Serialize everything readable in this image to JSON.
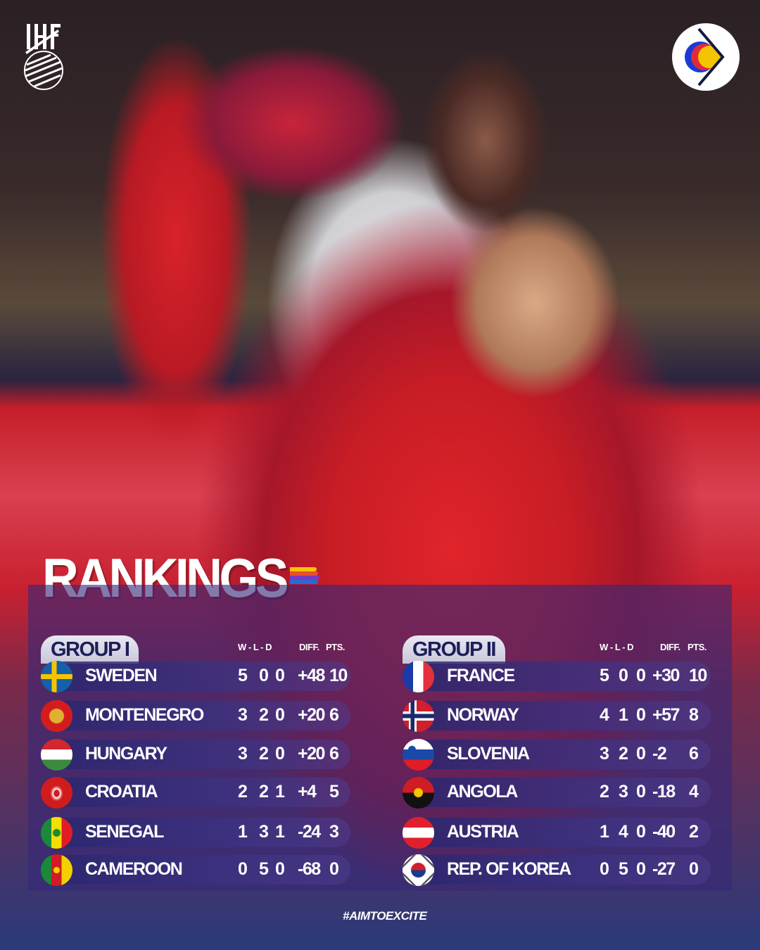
{
  "branding": {
    "left_logo": "IHF",
    "right_logo": "ehf-euro-icon",
    "hashtag": "#AIMTOEXCITE"
  },
  "title": "RANKINGS",
  "colors": {
    "title_stripes": [
      "#f5c400",
      "#e8502a",
      "#7a3ac0",
      "#2a6ad8"
    ],
    "panel": "#37287a",
    "group_tab_text": "#1b1f5a"
  },
  "columns": {
    "wld": "W - L - D",
    "diff": "DIFF.",
    "pts": "PTS."
  },
  "groups": [
    {
      "label": "GROUP I",
      "teams": [
        {
          "name": "SWEDEN",
          "flag": "se",
          "w": "5",
          "l": "0",
          "d": "0",
          "diff": "+48",
          "pts": "10"
        },
        {
          "name": "MONTENEGRO",
          "flag": "me",
          "w": "3",
          "l": "2",
          "d": "0",
          "diff": "+20",
          "pts": "6"
        },
        {
          "name": "HUNGARY",
          "flag": "hu",
          "w": "3",
          "l": "2",
          "d": "0",
          "diff": "+20",
          "pts": "6"
        },
        {
          "name": "CROATIA",
          "flag": "hr",
          "w": "2",
          "l": "2",
          "d": "1",
          "diff": "+4",
          "pts": "5"
        },
        {
          "name": "SENEGAL",
          "flag": "sn",
          "w": "1",
          "l": "3",
          "d": "1",
          "diff": "-24",
          "pts": "3"
        },
        {
          "name": "CAMEROON",
          "flag": "cm",
          "w": "0",
          "l": "5",
          "d": "0",
          "diff": "-68",
          "pts": "0"
        }
      ]
    },
    {
      "label": "GROUP II",
      "teams": [
        {
          "name": "FRANCE",
          "flag": "fr",
          "w": "5",
          "l": "0",
          "d": "0",
          "diff": "+30",
          "pts": "10"
        },
        {
          "name": "NORWAY",
          "flag": "no",
          "w": "4",
          "l": "1",
          "d": "0",
          "diff": "+57",
          "pts": "8"
        },
        {
          "name": "SLOVENIA",
          "flag": "si",
          "w": "3",
          "l": "2",
          "d": "0",
          "diff": "-2",
          "pts": "6"
        },
        {
          "name": "ANGOLA",
          "flag": "ao",
          "w": "2",
          "l": "3",
          "d": "0",
          "diff": "-18",
          "pts": "4"
        },
        {
          "name": "AUSTRIA",
          "flag": "at",
          "w": "1",
          "l": "4",
          "d": "0",
          "diff": "-40",
          "pts": "2"
        },
        {
          "name": "REP. OF KOREA",
          "flag": "kr",
          "w": "0",
          "l": "5",
          "d": "0",
          "diff": "-27",
          "pts": "0"
        }
      ]
    }
  ]
}
